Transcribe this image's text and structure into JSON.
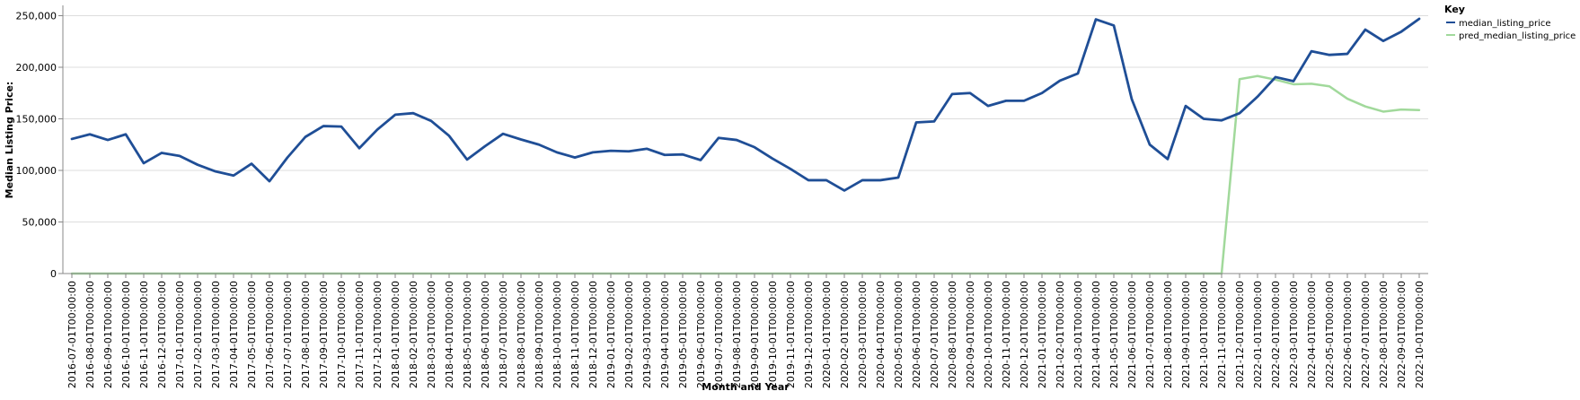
{
  "chart_data": {
    "type": "line",
    "xlabel": "Month and Year",
    "ylabel": "Median Listing Price:",
    "ylim": [
      0,
      260000
    ],
    "y_ticks": [
      {
        "value": 0,
        "label": "0"
      },
      {
        "value": 50000,
        "label": "50,000"
      },
      {
        "value": 100000,
        "label": "100,000"
      },
      {
        "value": 150000,
        "label": "150,000"
      },
      {
        "value": 200000,
        "label": "200,000"
      },
      {
        "value": 250000,
        "label": "250,000"
      }
    ],
    "grid": true,
    "legend": {
      "title": "Key",
      "position": "top-right"
    },
    "categories": [
      "2016-07-01T00:00:00",
      "2016-08-01T00:00:00",
      "2016-09-01T00:00:00",
      "2016-10-01T00:00:00",
      "2016-11-01T00:00:00",
      "2016-12-01T00:00:00",
      "2017-01-01T00:00:00",
      "2017-02-01T00:00:00",
      "2017-03-01T00:00:00",
      "2017-04-01T00:00:00",
      "2017-05-01T00:00:00",
      "2017-06-01T00:00:00",
      "2017-07-01T00:00:00",
      "2017-08-01T00:00:00",
      "2017-09-01T00:00:00",
      "2017-10-01T00:00:00",
      "2017-11-01T00:00:00",
      "2017-12-01T00:00:00",
      "2018-01-01T00:00:00",
      "2018-02-01T00:00:00",
      "2018-03-01T00:00:00",
      "2018-04-01T00:00:00",
      "2018-05-01T00:00:00",
      "2018-06-01T00:00:00",
      "2018-07-01T00:00:00",
      "2018-08-01T00:00:00",
      "2018-09-01T00:00:00",
      "2018-10-01T00:00:00",
      "2018-11-01T00:00:00",
      "2018-12-01T00:00:00",
      "2019-01-01T00:00:00",
      "2019-02-01T00:00:00",
      "2019-03-01T00:00:00",
      "2019-04-01T00:00:00",
      "2019-05-01T00:00:00",
      "2019-06-01T00:00:00",
      "2019-07-01T00:00:00",
      "2019-08-01T00:00:00",
      "2019-09-01T00:00:00",
      "2019-10-01T00:00:00",
      "2019-11-01T00:00:00",
      "2019-12-01T00:00:00",
      "2020-01-01T00:00:00",
      "2020-02-01T00:00:00",
      "2020-03-01T00:00:00",
      "2020-04-01T00:00:00",
      "2020-05-01T00:00:00",
      "2020-06-01T00:00:00",
      "2020-07-01T00:00:00",
      "2020-08-01T00:00:00",
      "2020-09-01T00:00:00",
      "2020-10-01T00:00:00",
      "2020-11-01T00:00:00",
      "2020-12-01T00:00:00",
      "2021-01-01T00:00:00",
      "2021-02-01T00:00:00",
      "2021-03-01T00:00:00",
      "2021-04-01T00:00:00",
      "2021-05-01T00:00:00",
      "2021-06-01T00:00:00",
      "2021-07-01T00:00:00",
      "2021-08-01T00:00:00",
      "2021-09-01T00:00:00",
      "2021-10-01T00:00:00",
      "2021-11-01T00:00:00",
      "2021-12-01T00:00:00",
      "2022-01-01T00:00:00",
      "2022-02-01T00:00:00",
      "2022-03-01T00:00:00",
      "2022-04-01T00:00:00",
      "2022-05-01T00:00:00",
      "2022-06-01T00:00:00",
      "2022-07-01T00:00:00",
      "2022-08-01T00:00:00",
      "2022-09-01T00:00:00",
      "2022-10-01T00:00:00"
    ],
    "series": [
      {
        "name": "median_listing_price",
        "color": "#1f4e96",
        "values": [
          130500,
          135000,
          129500,
          135000,
          107000,
          117000,
          114000,
          105500,
          99000,
          95000,
          106500,
          89500,
          112500,
          132500,
          143000,
          142500,
          121500,
          139500,
          154000,
          155500,
          148000,
          133500,
          110500,
          123500,
          135500,
          130000,
          125000,
          117500,
          112500,
          117500,
          119000,
          118500,
          121000,
          115000,
          115500,
          110000,
          131500,
          129500,
          122500,
          111500,
          101500,
          90500,
          90500,
          80500,
          90500,
          90500,
          93000,
          146500,
          147500,
          174000,
          175000,
          162500,
          167500,
          167500,
          175000,
          187000,
          194000,
          246500,
          240500,
          169000,
          125000,
          111000,
          162500,
          150000,
          148500,
          155500,
          171500,
          190500,
          186500,
          215500,
          212000,
          213000,
          236500,
          225500,
          234500,
          247000
        ]
      },
      {
        "name": "pred_median_listing_price",
        "color": "#a1d99b",
        "values": [
          0,
          0,
          0,
          0,
          0,
          0,
          0,
          0,
          0,
          0,
          0,
          0,
          0,
          0,
          0,
          0,
          0,
          0,
          0,
          0,
          0,
          0,
          0,
          0,
          0,
          0,
          0,
          0,
          0,
          0,
          0,
          0,
          0,
          0,
          0,
          0,
          0,
          0,
          0,
          0,
          0,
          0,
          0,
          0,
          0,
          0,
          0,
          0,
          0,
          0,
          0,
          0,
          0,
          0,
          0,
          0,
          0,
          0,
          0,
          0,
          0,
          0,
          0,
          0,
          0,
          188500,
          191500,
          188000,
          183500,
          184000,
          181500,
          169500,
          162000,
          157000,
          159000,
          158500
        ]
      }
    ]
  }
}
